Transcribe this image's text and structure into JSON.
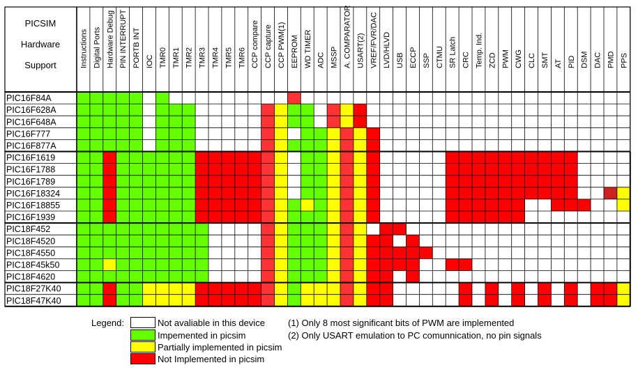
{
  "title_lines": [
    "PICSIM",
    "Hardware",
    "Support"
  ],
  "columns": [
    "Instructions",
    "Digital Ports",
    "Hardware Debug",
    "PIN INTERRUPT",
    "PORTB INT",
    "IOC",
    "TMR0",
    "TMR1",
    "TMR2",
    "TMR3",
    "TMR4",
    "TMR5",
    "TMR6",
    "CCP compare",
    "CCP capture",
    "CCP PWM(1)",
    "EEPROM",
    "WD TIMER",
    "ADC",
    "MSSP",
    "A. COMPARATOR",
    "USART(2)",
    "VREF/FVR/DAC",
    "LVD/HLVD",
    "USB",
    "ECCP",
    "SSP",
    "CTMU",
    "SR Latch",
    "CRC",
    "Temp. Ind.",
    "ZCD",
    "PWM",
    "CWG",
    "CLC",
    "SMT",
    "AT",
    "PID",
    "DSM",
    "DAC",
    "PMD",
    "PPS"
  ],
  "status_colors": {
    "G": "#66ff00",
    "Y": "#ffff00",
    "R": "#ff0000",
    "L": "#ff3333",
    "D": "#cc2222",
    "E": "#ffffff"
  },
  "rows": [
    {
      "name": "PIC16F84A",
      "cells": "GGGGGEGEEEEEEEEELEEEEEEEEEEEEEEEEEEEEEEEEE"
    },
    {
      "name": "PIC16F628A",
      "cells": "GGGGGEGGGEEEEELYGGELYREEEEEEEEEEEEEEEEEEEE"
    },
    {
      "name": "PIC16F648A",
      "cells": "GGGGGEGGGEEEEELYGGELYREEEEEEEEEEEEEEEEEEEE"
    },
    {
      "name": "PIC16F777",
      "cells": "GGGGGEGGGEEEEELYEGGYLYREEEEEEEEEEEEEEEEEEE"
    },
    {
      "name": "PIC16F877A",
      "cells": "GGGGGEGGGEEEEELYGGGYLYREEEEEEEEEEEEEEEEEEE"
    },
    {
      "name": "PIC16F1619",
      "cells": "GGRGGGGGGRRRRRLYEGGYLYREEEEERRRRRRRRRREEEE"
    },
    {
      "name": "PIC16F1788",
      "cells": "GGRGGGGGGRRRRRLYEGGYLYREEEEERRRRRRRRRREEEE"
    },
    {
      "name": "PIC16F1789",
      "cells": "GGRGGGGGGRRRRRLYEGGYLYREEEEERRRRRRRRRREEEE"
    },
    {
      "name": "PIC16F18324",
      "cells": "GGRGGGGGGRRRRRLYEGGYLYREEEEERRRRRRRRRREEDY"
    },
    {
      "name": "PIC16F18855",
      "cells": "GGRGGGGGGRRRRRLYGYGYLYREEEEERRRRRREERRREEY"
    },
    {
      "name": "PIC16F1939",
      "cells": "GGRGGGGGGRRRRRLYGGGYLYREEEEERRRRRREEEEEEEE"
    },
    {
      "name": "PIC18F452",
      "cells": "GGGGGGGGGGEEEELYGGGYLYERREEEEEEEEEEEEEEEEE"
    },
    {
      "name": "PIC18F4520",
      "cells": "GGGGGGGGGGEEEELYGGGYLYRREREEEEEEEEEEEEEEEE"
    },
    {
      "name": "PIC18F4550",
      "cells": "GGGGGGGGGGEEEELYGGGYLYRRRRREEEEEEEEEEEEEEE"
    },
    {
      "name": "PIC18F45k50",
      "cells": "GGYGGGGGGGEEEELYGGGYLYRRRREERREEEEEEEEEEEE"
    },
    {
      "name": "PIC18F4620",
      "cells": "GGGGGGGGGGEEEELYGGGYLYRREREEEEEEEEEEEEEEEE"
    },
    {
      "name": "PIC18F27K40",
      "cells": "GGRGGYYYYRRRRRLYGYYYLYRREEEEERERERERERERRY"
    },
    {
      "name": "PIC18F47K40",
      "cells": "GGRGGYYYYRRRRRLYGYYYLYRREEEEERERERERERERRY"
    }
  ],
  "legend": {
    "label": "Legend:",
    "items": [
      {
        "status": "E",
        "text": "Not avaliable in this device"
      },
      {
        "status": "G",
        "text": "Impemented in picsim"
      },
      {
        "status": "Y",
        "text": "Partially implemented in picsim"
      },
      {
        "status": "R",
        "text": "Not Implemented in picsim"
      }
    ]
  },
  "notes": [
    "(1) Only 8 most significant bits of PWM are implemented",
    "(2) Only USART emulation to PC comunnication, no pin signals"
  ]
}
